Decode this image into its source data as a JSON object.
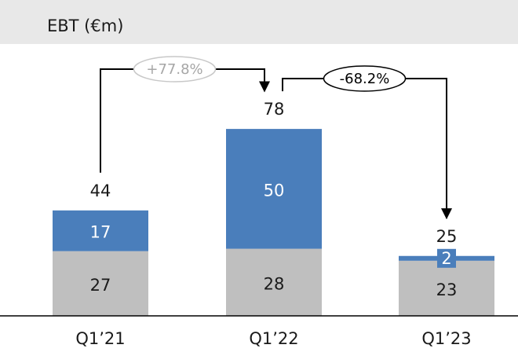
{
  "chart_data": {
    "type": "stacked_bar",
    "title": "EBT (€m)",
    "categories": [
      "Q1’21",
      "Q1’22",
      "Q1’23"
    ],
    "series": [
      {
        "color": "#bfbfbf",
        "values": [
          27,
          28,
          23
        ]
      },
      {
        "color": "#4a7ebb",
        "values": [
          17,
          50,
          2
        ]
      }
    ],
    "totals": [
      44,
      78,
      25
    ],
    "annotations": [
      "+77.8%",
      "-68.2%"
    ],
    "ylim": [
      0,
      100
    ]
  }
}
